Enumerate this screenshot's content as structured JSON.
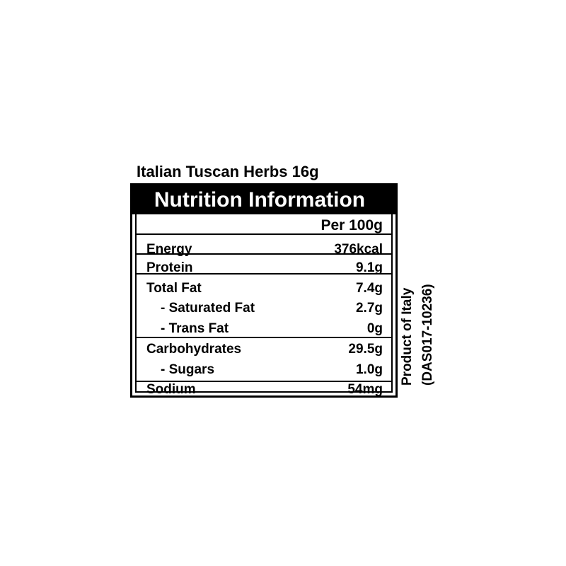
{
  "product_title": "Italian Tuscan Herbs 16g",
  "header": "Nutrition Information",
  "column_header": "Per 100g",
  "rows": [
    {
      "label": "Energy",
      "value": "376kcal"
    },
    {
      "label": "Protein",
      "value": "9.1g"
    },
    {
      "label": "Total Fat",
      "value": "7.4g"
    },
    {
      "label": "- Saturated Fat",
      "value": "2.7g"
    },
    {
      "label": "- Trans Fat",
      "value": "0g"
    },
    {
      "label": "Carbohydrates",
      "value": "29.5g"
    },
    {
      "label": "- Sugars",
      "value": "1.0g"
    },
    {
      "label": "Sodium",
      "value": "54mg"
    }
  ],
  "origin": "Product of Italy",
  "code": "(DAS017-10236)"
}
